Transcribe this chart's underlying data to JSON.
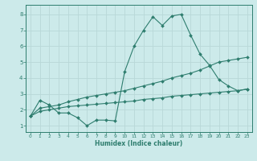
{
  "xlabel": "Humidex (Indice chaleur)",
  "x": [
    0,
    1,
    2,
    3,
    4,
    5,
    6,
    7,
    8,
    9,
    10,
    11,
    12,
    13,
    14,
    15,
    16,
    17,
    18,
    19,
    20,
    21,
    22,
    23
  ],
  "line1": [
    1.6,
    2.6,
    2.3,
    1.8,
    1.8,
    1.5,
    1.0,
    1.35,
    1.35,
    1.3,
    4.4,
    6.0,
    7.0,
    7.85,
    7.3,
    7.9,
    8.0,
    6.7,
    5.5,
    4.8,
    3.9,
    3.5,
    3.2,
    3.3
  ],
  "line2": [
    1.6,
    2.1,
    2.2,
    2.3,
    2.5,
    2.65,
    2.8,
    2.9,
    3.0,
    3.1,
    3.2,
    3.35,
    3.5,
    3.65,
    3.8,
    4.0,
    4.15,
    4.3,
    4.5,
    4.75,
    5.0,
    5.1,
    5.2,
    5.3
  ],
  "line3": [
    1.6,
    1.9,
    2.0,
    2.1,
    2.2,
    2.25,
    2.3,
    2.35,
    2.4,
    2.45,
    2.5,
    2.55,
    2.65,
    2.7,
    2.75,
    2.85,
    2.9,
    2.95,
    3.0,
    3.05,
    3.1,
    3.15,
    3.2,
    3.3
  ],
  "line_color": "#2e7d6e",
  "bg_color": "#cceaea",
  "grid_color": "#b8d8d8",
  "ylim": [
    0.6,
    8.6
  ],
  "xlim": [
    -0.5,
    23.5
  ],
  "yticks": [
    1,
    2,
    3,
    4,
    5,
    6,
    7,
    8
  ],
  "xticks": [
    0,
    1,
    2,
    3,
    4,
    5,
    6,
    7,
    8,
    9,
    10,
    11,
    12,
    13,
    14,
    15,
    16,
    17,
    18,
    19,
    20,
    21,
    22,
    23
  ]
}
